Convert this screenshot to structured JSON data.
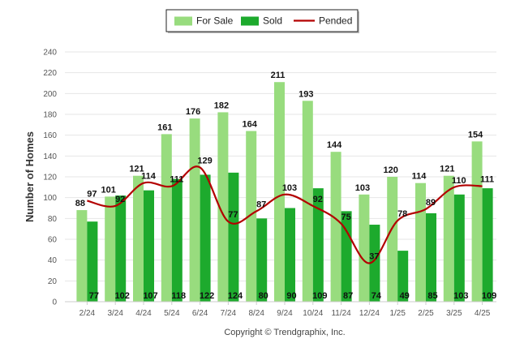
{
  "chart_data": {
    "type": "bar",
    "categories": [
      "2/24",
      "3/24",
      "4/24",
      "5/24",
      "6/24",
      "7/24",
      "8/24",
      "9/24",
      "10/24",
      "11/24",
      "12/24",
      "1/25",
      "2/25",
      "3/25",
      "4/25"
    ],
    "series": [
      {
        "name": "For Sale",
        "type": "bar",
        "color": "#98dc7e",
        "values": [
          88,
          101,
          121,
          161,
          176,
          182,
          164,
          211,
          193,
          144,
          103,
          120,
          114,
          121,
          154
        ]
      },
      {
        "name": "Sold",
        "type": "bar",
        "color": "#1daa2d",
        "values": [
          77,
          102,
          107,
          118,
          122,
          124,
          80,
          90,
          109,
          87,
          74,
          49,
          85,
          103,
          109
        ]
      },
      {
        "name": "Pended",
        "type": "line",
        "color": "#b30000",
        "values": [
          97,
          92,
          114,
          111,
          129,
          77,
          87,
          103,
          92,
          75,
          37,
          78,
          89,
          110,
          111
        ]
      }
    ],
    "title": "",
    "xlabel": "",
    "ylabel": "Number of Homes",
    "ylim": [
      0,
      240
    ],
    "yticks": [
      0,
      20,
      40,
      60,
      80,
      100,
      120,
      140,
      160,
      180,
      200,
      220,
      240
    ],
    "grid": true,
    "legend_position": "top-center"
  },
  "footer": {
    "copyright": "Copyright © Trendgraphix, Inc."
  }
}
